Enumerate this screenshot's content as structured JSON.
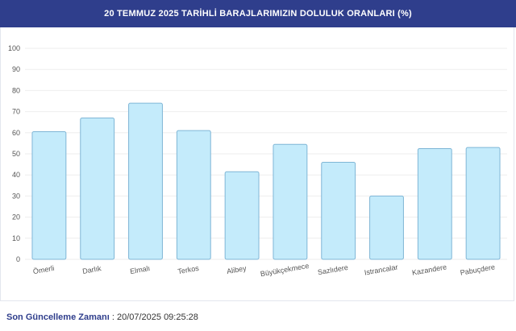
{
  "header": {
    "title": "20 TEMMUZ 2025 TARİHLİ BARAJLARIMIZIN DOLULUK ORANLARI (%)"
  },
  "footer": {
    "label": "Son Güncelleme Zamanı",
    "separator": ":",
    "value": "20/07/2025 09:25:28"
  },
  "chart_data": {
    "type": "bar",
    "title": "20 TEMMUZ 2025 TARİHLİ BARAJLARIMIZIN DOLULUK ORANLARI (%)",
    "categories": [
      "Ömerli",
      "Darlık",
      "Elmalı",
      "Terkos",
      "Alibey",
      "Büyükçekmece",
      "Sazlıdere",
      "Istrancalar",
      "Kazandere",
      "Pabuçdere"
    ],
    "values": [
      60.5,
      67,
      74,
      61,
      41.5,
      54.5,
      46,
      30,
      52.5,
      53
    ],
    "ylim": [
      0,
      100
    ],
    "yticks": [
      0,
      10,
      20,
      30,
      40,
      50,
      60,
      70,
      80,
      90,
      100
    ],
    "xlabel": "",
    "ylabel": "",
    "grid": true,
    "colors": {
      "bar_fill": "#c4ebfb",
      "bar_stroke": "#7fb6d6",
      "grid": "#eeeeee",
      "tick": "#555555"
    }
  }
}
